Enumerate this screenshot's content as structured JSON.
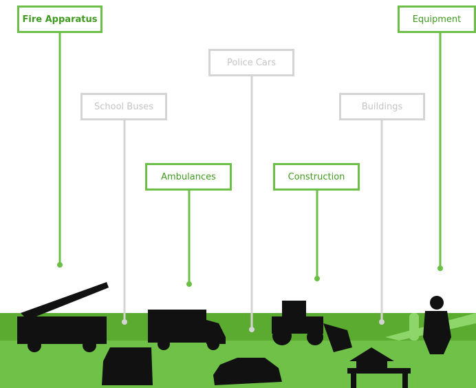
{
  "nodes": [
    {
      "label": "Fire Apparatus"
    },
    {
      "label": "School Buses"
    },
    {
      "label": "Police Cars"
    },
    {
      "label": "Ambulances"
    },
    {
      "label": "Construction"
    },
    {
      "label": "Buildings"
    },
    {
      "label": "Equipment"
    }
  ]
}
